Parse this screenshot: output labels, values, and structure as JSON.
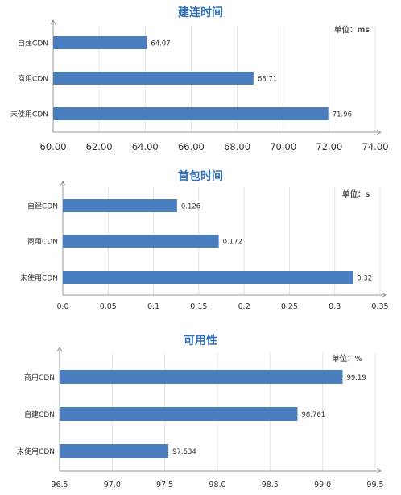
{
  "charts": [
    {
      "title": "建连时间",
      "unit": "单位：ms",
      "chart_data": {
        "type": "bar",
        "orientation": "horizontal",
        "title": "建连时间",
        "categories": [
          "自建CDN",
          "商用CDN",
          "未使用CDN"
        ],
        "values": [
          64.07,
          68.71,
          71.96
        ],
        "value_labels": [
          "64.07",
          "68.71",
          "71.96"
        ],
        "xlim": [
          60,
          74
        ],
        "ticks": [
          60,
          62,
          64,
          66,
          68,
          70,
          72,
          74
        ],
        "tick_labels": [
          "60.00",
          "62.00",
          "64.00",
          "66.00",
          "68.00",
          "70.00",
          "72.00",
          "74.00"
        ],
        "grid": true,
        "bar_color": "#4a7ebf"
      }
    },
    {
      "title": "首包时间",
      "unit": "单位：s",
      "chart_data": {
        "type": "bar",
        "orientation": "horizontal",
        "title": "首包时间",
        "categories": [
          "自建CDN",
          "商用CDN",
          "未使用CDN"
        ],
        "values": [
          0.126,
          0.172,
          0.32
        ],
        "value_labels": [
          "0.126",
          "0.172",
          "0.32"
        ],
        "xlim": [
          0,
          0.35
        ],
        "ticks": [
          0,
          0.05,
          0.1,
          0.15,
          0.2,
          0.25,
          0.3,
          0.35
        ],
        "tick_labels": [
          "0.0",
          "0.05",
          "0.1",
          "0.15",
          "0.2",
          "0.25",
          "0.3",
          "0.35"
        ],
        "grid": true,
        "bar_color": "#4a7ebf"
      }
    },
    {
      "title": "可用性",
      "unit": "单位：%",
      "chart_data": {
        "type": "bar",
        "orientation": "horizontal",
        "title": "可用性",
        "categories": [
          "商用CDN",
          "自建CDN",
          "未使用CDN"
        ],
        "values": [
          99.19,
          98.761,
          97.534
        ],
        "value_labels": [
          "99.19",
          "98.761",
          "97.534"
        ],
        "xlim": [
          96.5,
          99.5
        ],
        "ticks": [
          96.5,
          97.0,
          97.5,
          98.0,
          98.5,
          99.0,
          99.5
        ],
        "tick_labels": [
          "96.5",
          "97.0",
          "97.5",
          "98.0",
          "98.5",
          "99.0",
          "99.5"
        ],
        "grid": true,
        "bar_color": "#4a7ebf"
      }
    }
  ]
}
